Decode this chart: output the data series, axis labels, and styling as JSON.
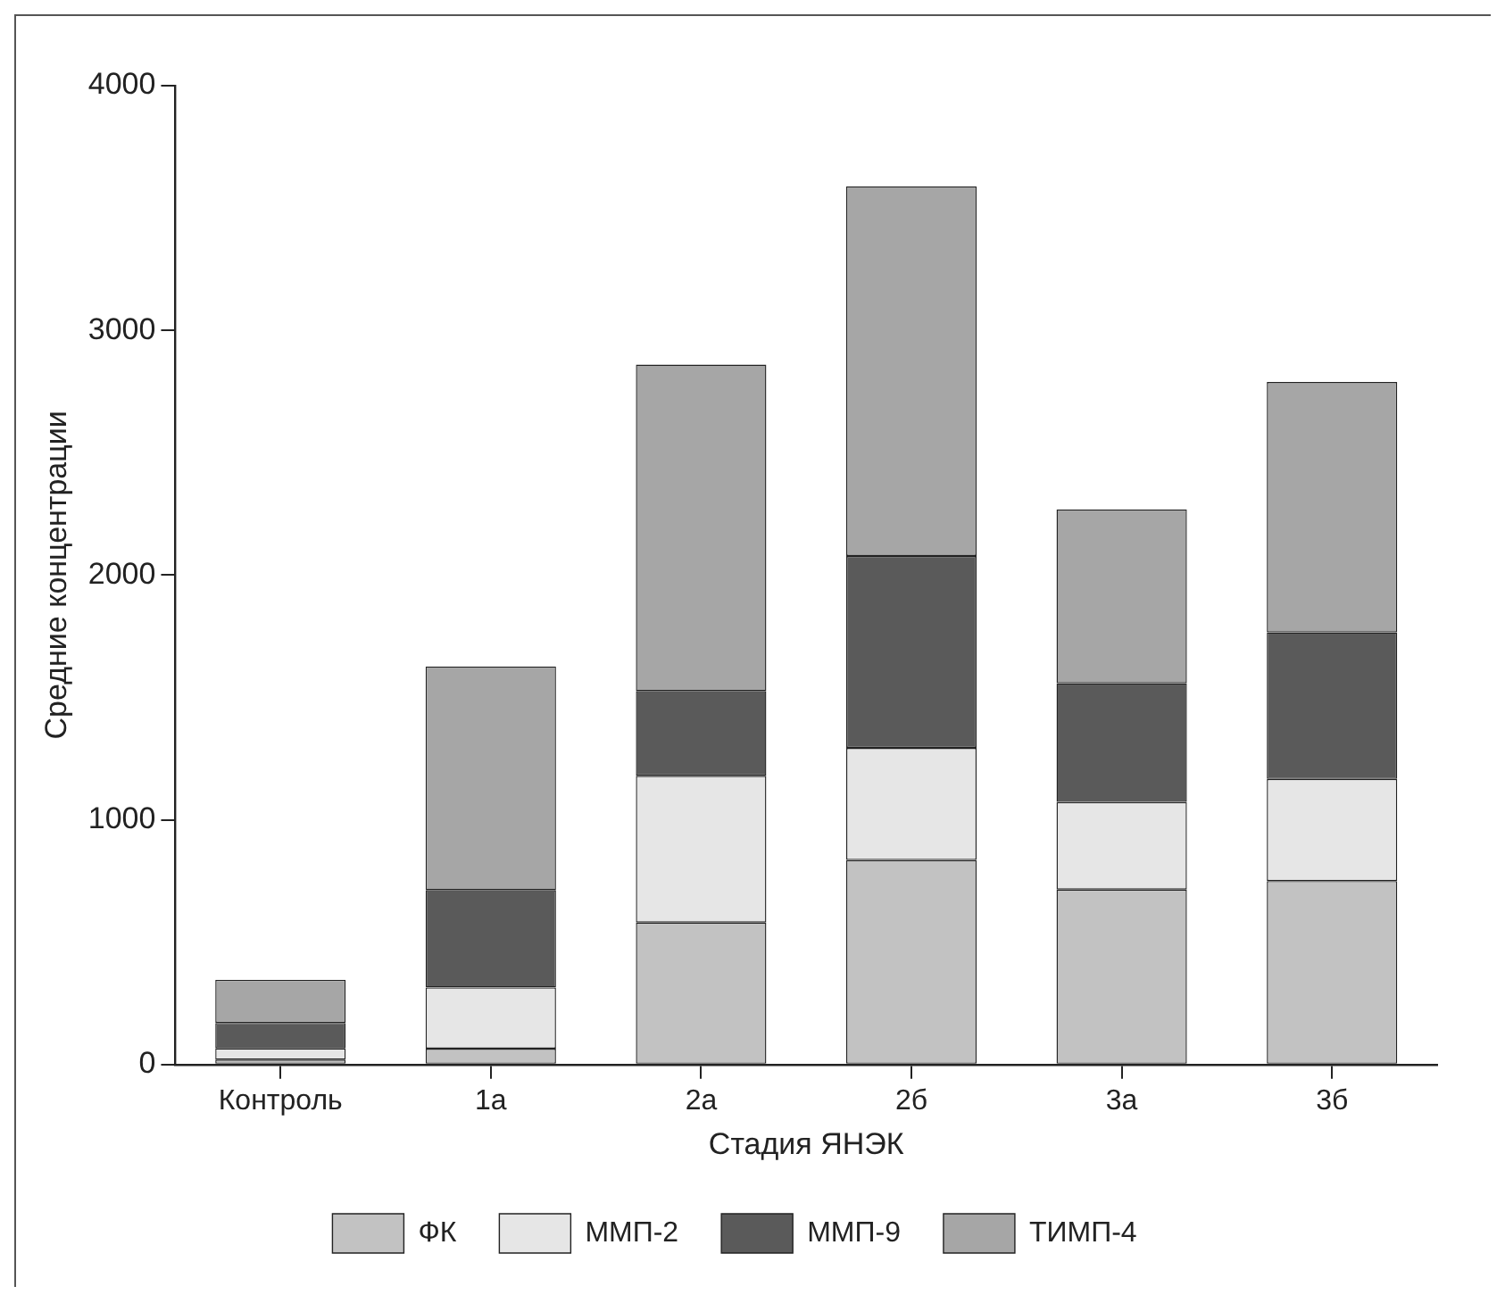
{
  "chart_data": {
    "type": "bar",
    "stacked": true,
    "xlabel": "Стадия ЯНЭК",
    "ylabel": "Средние концентрации",
    "categories": [
      "Контроль",
      "1а",
      "2а",
      "2б",
      "3а",
      "3б"
    ],
    "series": [
      {
        "name": "ФК",
        "color": "#c2c2c2",
        "values": [
          20,
          65,
          580,
          836,
          715,
          750
        ]
      },
      {
        "name": "ММП-2",
        "color": "#e6e6e6",
        "values": [
          46,
          250,
          600,
          458,
          358,
          417
        ]
      },
      {
        "name": "ММП-9",
        "color": "#5a5a5a",
        "values": [
          104,
          398,
          346,
          784,
          485,
          599
        ]
      },
      {
        "name": "ТИМП-4",
        "color": "#a6a6a6",
        "values": [
          176,
          914,
          1334,
          1511,
          711,
          1023
        ]
      }
    ],
    "ylim": [
      0,
      4000
    ],
    "yticks": [
      0,
      1000,
      2000,
      3000,
      4000
    ],
    "grid": false,
    "legend": "bottom"
  }
}
